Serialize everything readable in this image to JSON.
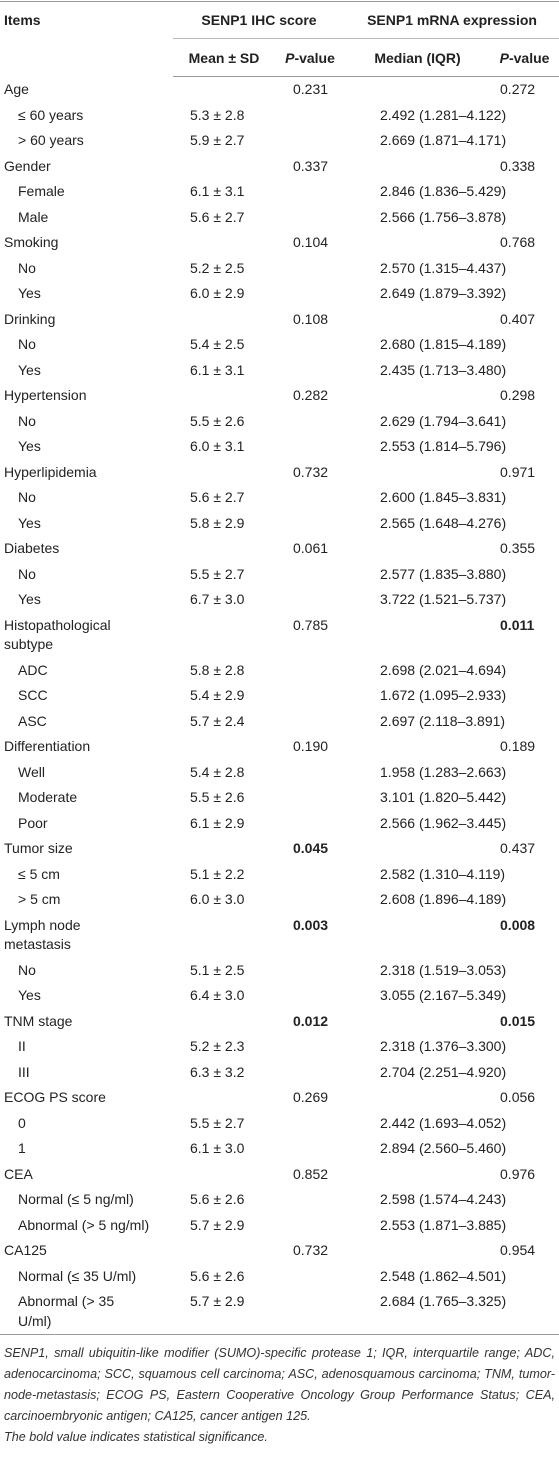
{
  "header": {
    "items": "Items",
    "ihc": "SENP1 IHC score",
    "mrna": "SENP1 mRNA expression",
    "sub": [
      "Mean ± SD",
      [
        "P",
        "-value"
      ],
      "Median (IQR)",
      [
        "P",
        "-value"
      ]
    ]
  },
  "groups": [
    {
      "label": "Age",
      "ihc_p": "0.231",
      "mrna_p": "0.272",
      "rows": [
        {
          "label": "≤ 60 years",
          "ihc": "5.3 ± 2.8",
          "mrna": "2.492 (1.281–4.122)"
        },
        {
          "label": "> 60 years",
          "ihc": "5.9 ± 2.7",
          "mrna": "2.669 (1.871–4.171)"
        }
      ]
    },
    {
      "label": "Gender",
      "ihc_p": "0.337",
      "mrna_p": "0.338",
      "rows": [
        {
          "label": "Female",
          "ihc": "6.1 ± 3.1",
          "mrna": "2.846 (1.836–5.429)"
        },
        {
          "label": "Male",
          "ihc": "5.6 ± 2.7",
          "mrna": "2.566 (1.756–3.878)"
        }
      ]
    },
    {
      "label": "Smoking",
      "ihc_p": "0.104",
      "mrna_p": "0.768",
      "rows": [
        {
          "label": "No",
          "ihc": "5.2 ± 2.5",
          "mrna": "2.570 (1.315–4.437)"
        },
        {
          "label": "Yes",
          "ihc": "6.0 ± 2.9",
          "mrna": "2.649 (1.879–3.392)"
        }
      ]
    },
    {
      "label": "Drinking",
      "ihc_p": "0.108",
      "mrna_p": "0.407",
      "rows": [
        {
          "label": "No",
          "ihc": "5.4 ± 2.5",
          "mrna": "2.680 (1.815–4.189)"
        },
        {
          "label": "Yes",
          "ihc": "6.1 ± 3.1",
          "mrna": "2.435 (1.713–3.480)"
        }
      ]
    },
    {
      "label": "Hypertension",
      "ihc_p": "0.282",
      "mrna_p": "0.298",
      "rows": [
        {
          "label": "No",
          "ihc": "5.5 ± 2.6",
          "mrna": "2.629 (1.794–3.641)"
        },
        {
          "label": "Yes",
          "ihc": "6.0 ± 3.1",
          "mrna": "2.553 (1.814–5.796)"
        }
      ]
    },
    {
      "label": "Hyperlipidemia",
      "ihc_p": "0.732",
      "mrna_p": "0.971",
      "rows": [
        {
          "label": "No",
          "ihc": "5.6 ± 2.7",
          "mrna": "2.600 (1.845–3.831)"
        },
        {
          "label": "Yes",
          "ihc": "5.8 ± 2.9",
          "mrna": "2.565 (1.648–4.276)"
        }
      ]
    },
    {
      "label": "Diabetes",
      "ihc_p": "0.061",
      "mrna_p": "0.355",
      "rows": [
        {
          "label": "No",
          "ihc": "5.5 ± 2.7",
          "mrna": "2.577 (1.835–3.880)"
        },
        {
          "label": "Yes",
          "ihc": "6.7 ± 3.0",
          "mrna": "3.722 (1.521–5.737)"
        }
      ]
    },
    {
      "label": [
        "Histopathological",
        "subtype"
      ],
      "ihc_p": "0.785",
      "mrna_p": "0.011",
      "mrna_p_bold": true,
      "rows": [
        {
          "label": "ADC",
          "ihc": "5.8 ± 2.8",
          "mrna": "2.698 (2.021–4.694)"
        },
        {
          "label": "SCC",
          "ihc": "5.4 ± 2.9",
          "mrna": "1.672 (1.095–2.933)"
        },
        {
          "label": "ASC",
          "ihc": "5.7 ± 2.4",
          "mrna": "2.697 (2.118–3.891)"
        }
      ]
    },
    {
      "label": "Differentiation",
      "ihc_p": "0.190",
      "mrna_p": "0.189",
      "rows": [
        {
          "label": "Well",
          "ihc": "5.4 ± 2.8",
          "mrna": "1.958 (1.283–2.663)"
        },
        {
          "label": "Moderate",
          "ihc": "5.5 ± 2.6",
          "mrna": "3.101 (1.820–5.442)"
        },
        {
          "label": "Poor",
          "ihc": "6.1 ± 2.9",
          "mrna": "2.566 (1.962–3.445)"
        }
      ]
    },
    {
      "label": "Tumor size",
      "ihc_p": "0.045",
      "ihc_p_bold": true,
      "mrna_p": "0.437",
      "rows": [
        {
          "label": "≤ 5 cm",
          "ihc": "5.1 ± 2.2",
          "mrna": "2.582 (1.310–4.119)"
        },
        {
          "label": "> 5 cm",
          "ihc": "6.0 ± 3.0",
          "mrna": "2.608 (1.896–4.189)"
        }
      ]
    },
    {
      "label": [
        "Lymph node",
        "metastasis"
      ],
      "ihc_p": "0.003",
      "ihc_p_bold": true,
      "mrna_p": "0.008",
      "mrna_p_bold": true,
      "rows": [
        {
          "label": "No",
          "ihc": "5.1 ± 2.5",
          "mrna": "2.318 (1.519–3.053)"
        },
        {
          "label": "Yes",
          "ihc": "6.4 ± 3.0",
          "mrna": "3.055 (2.167–5.349)"
        }
      ]
    },
    {
      "label": "TNM stage",
      "ihc_p": "0.012",
      "ihc_p_bold": true,
      "mrna_p": "0.015",
      "mrna_p_bold": true,
      "rows": [
        {
          "label": "II",
          "ihc": "5.2 ± 2.3",
          "mrna": "2.318 (1.376–3.300)"
        },
        {
          "label": "III",
          "ihc": "6.3 ± 3.2",
          "mrna": "2.704 (2.251–4.920)"
        }
      ]
    },
    {
      "label": "ECOG PS score",
      "ihc_p": "0.269",
      "mrna_p": "0.056",
      "rows": [
        {
          "label": "0",
          "ihc": "5.5 ± 2.7",
          "mrna": "2.442 (1.693–4.052)"
        },
        {
          "label": "1",
          "ihc": "6.1 ± 3.0",
          "mrna": "2.894 (2.560–5.460)"
        }
      ]
    },
    {
      "label": "CEA",
      "ihc_p": "0.852",
      "mrna_p": "0.976",
      "rows": [
        {
          "label": "Normal (≤ 5 ng/ml)",
          "ihc": "5.6 ± 2.6",
          "mrna": "2.598 (1.574–4.243)"
        },
        {
          "label": "Abnormal (> 5 ng/ml)",
          "ihc": "5.7 ± 2.9",
          "mrna": "2.553 (1.871–3.885)"
        }
      ]
    },
    {
      "label": "CA125",
      "ihc_p": "0.732",
      "mrna_p": "0.954",
      "rows": [
        {
          "label": "Normal (≤ 35 U/ml)",
          "ihc": "5.6 ± 2.6",
          "mrna": "2.548 (1.862–4.501)"
        },
        {
          "label": [
            "Abnormal (> 35",
            "U/ml)"
          ],
          "ihc": "5.7 ± 2.9",
          "mrna": "2.684 (1.765–3.325)"
        }
      ]
    }
  ],
  "footnote": {
    "text": "SENP1, small ubiquitin-like modifier (SUMO)-specific protease 1; IQR, interquartile range; ADC, adenocarcinoma; SCC, squamous cell carcinoma; ASC, adenosquamous carcinoma; TNM, tumor-node-metastasis; ECOG PS, Eastern Cooperative Oncology Group Performance Status; CEA, carcinoembryonic antigen; CA125, cancer antigen 125.",
    "bold_note": "The bold value indicates statistical significance."
  }
}
